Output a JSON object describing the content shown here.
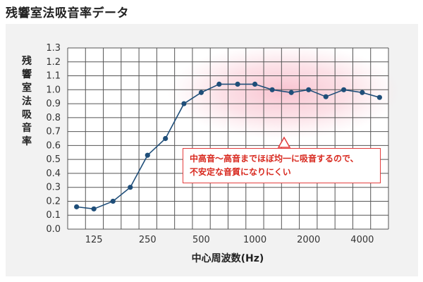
{
  "title": "残響室法吸音率データ",
  "annotation": {
    "line1": "中高音〜高音までほぼ均一に吸音するので、",
    "line2": "不安定な音質になりにくい"
  },
  "colors": {
    "line": "#1f4e79",
    "grid": "#555555",
    "highlight": "#f7b8c7",
    "callout_border": "#e43c3c",
    "callout_text": "#d8291f",
    "panel": "#f2f2f2"
  },
  "chart_data": {
    "type": "line",
    "xlabel": "中心周波数(Hz)",
    "ylabel": "残響室法吸音率",
    "x_scale": "log",
    "x": [
      100,
      125,
      160,
      200,
      250,
      315,
      400,
      500,
      630,
      800,
      1000,
      1250,
      1600,
      2000,
      2500,
      3150,
      4000,
      5000
    ],
    "x_ticks": [
      "125",
      "250",
      "500",
      "1000",
      "2000",
      "4000"
    ],
    "x_tick_values": [
      125,
      250,
      500,
      1000,
      2000,
      4000
    ],
    "y_ticks": [
      "0.0",
      "0.1",
      "0.2",
      "0.3",
      "0.4",
      "0.5",
      "0.6",
      "0.7",
      "0.8",
      "0.9",
      "1.0",
      "1.1",
      "1.2",
      "1.3"
    ],
    "ylim": [
      0,
      1.3
    ],
    "grid": true,
    "series": [
      {
        "values": [
          0.16,
          0.145,
          0.2,
          0.3,
          0.53,
          0.65,
          0.9,
          0.98,
          1.04,
          1.04,
          1.04,
          1.0,
          0.98,
          1.0,
          0.95,
          1.0,
          0.98,
          0.945
        ]
      }
    ]
  }
}
